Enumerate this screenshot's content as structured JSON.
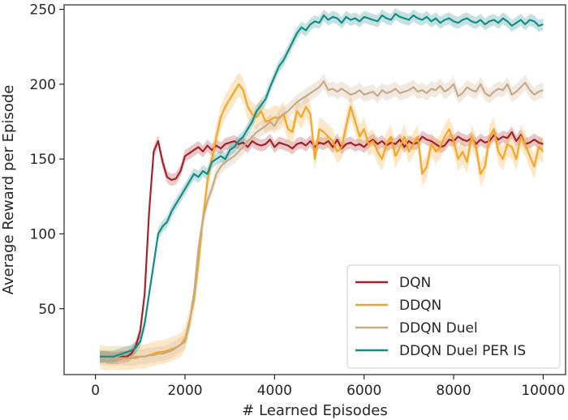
{
  "chart_data": {
    "type": "line",
    "xlabel": "# Learned Episodes",
    "ylabel": "Average Reward per Episode",
    "xlim": [
      -700,
      10500
    ],
    "ylim": [
      6,
      253
    ],
    "xticks": [
      0,
      2000,
      4000,
      6000,
      8000,
      10000
    ],
    "yticks": [
      50,
      100,
      150,
      200,
      250
    ],
    "grid": false,
    "legend_position": "lower-right",
    "x": [
      100,
      200,
      300,
      400,
      500,
      600,
      700,
      800,
      900,
      1000,
      1100,
      1200,
      1300,
      1400,
      1500,
      1600,
      1700,
      1800,
      1900,
      2000,
      2100,
      2200,
      2300,
      2400,
      2500,
      2600,
      2700,
      2800,
      2900,
      3000,
      3100,
      3200,
      3300,
      3400,
      3500,
      3600,
      3700,
      3800,
      3900,
      4000,
      4100,
      4200,
      4300,
      4400,
      4500,
      4600,
      4700,
      4800,
      4900,
      5000,
      5100,
      5200,
      5300,
      5400,
      5500,
      5600,
      5700,
      5800,
      5900,
      6000,
      6100,
      6200,
      6300,
      6400,
      6500,
      6600,
      6700,
      6800,
      6900,
      7000,
      7100,
      7200,
      7300,
      7400,
      7500,
      7600,
      7700,
      7800,
      7900,
      8000,
      8100,
      8200,
      8300,
      8400,
      8500,
      8600,
      8700,
      8800,
      8900,
      9000,
      9100,
      9200,
      9300,
      9400,
      9500,
      9600,
      9700,
      9800,
      9900,
      10000
    ],
    "series": [
      {
        "name": "DQN",
        "color": "#a52228",
        "values": [
          18,
          18,
          17,
          17,
          17,
          18,
          18,
          20,
          25,
          35,
          60,
          115,
          155,
          162,
          148,
          138,
          136,
          137,
          142,
          152,
          154,
          156,
          158,
          155,
          159,
          156,
          159,
          157,
          160,
          161,
          162,
          160,
          161,
          158,
          162,
          160,
          159,
          160,
          163,
          158,
          161,
          160,
          159,
          157,
          160,
          161,
          159,
          162,
          158,
          161,
          160,
          162,
          158,
          163,
          157,
          160,
          161,
          159,
          160,
          158,
          161,
          163,
          160,
          162,
          159,
          161,
          160,
          163,
          158,
          162,
          160,
          161,
          165,
          163,
          162,
          160,
          158,
          159,
          163,
          162,
          165,
          163,
          162,
          164,
          160,
          163,
          161,
          162,
          166,
          163,
          165,
          164,
          168,
          162,
          166,
          160,
          161,
          163,
          161,
          160
        ],
        "band": 4
      },
      {
        "name": "DDQN",
        "color": "#f5a524",
        "values": [
          18,
          17,
          17,
          17,
          17,
          17,
          17,
          17,
          18,
          18,
          18,
          19,
          20,
          21,
          21,
          22,
          23,
          24,
          26,
          30,
          42,
          55,
          80,
          110,
          135,
          150,
          165,
          178,
          185,
          190,
          195,
          200,
          196,
          185,
          180,
          178,
          182,
          175,
          176,
          178,
          177,
          180,
          170,
          168,
          182,
          178,
          185,
          180,
          150,
          170,
          168,
          165,
          162,
          155,
          158,
          172,
          185,
          175,
          165,
          170,
          160,
          162,
          155,
          150,
          160,
          165,
          152,
          158,
          165,
          155,
          160,
          165,
          140,
          145,
          160,
          155,
          158,
          165,
          170,
          162,
          150,
          155,
          148,
          165,
          158,
          140,
          145,
          165,
          170,
          155,
          150,
          160,
          158,
          150,
          165,
          160,
          152,
          145,
          158,
          155
        ],
        "band": 8
      },
      {
        "name": "DDQN Duel",
        "color": "#c8aa88",
        "values": [
          18,
          17,
          17,
          17,
          17,
          17,
          17,
          17,
          17,
          18,
          18,
          19,
          19,
          20,
          20,
          21,
          22,
          24,
          26,
          28,
          40,
          60,
          90,
          110,
          122,
          130,
          140,
          145,
          148,
          150,
          152,
          155,
          158,
          162,
          165,
          168,
          170,
          172,
          175,
          172,
          178,
          180,
          182,
          185,
          188,
          190,
          192,
          194,
          196,
          198,
          202,
          196,
          197,
          195,
          197,
          195,
          193,
          194,
          196,
          193,
          194,
          195,
          192,
          196,
          194,
          195,
          197,
          194,
          195,
          196,
          198,
          195,
          196,
          194,
          197,
          196,
          199,
          195,
          197,
          200,
          192,
          194,
          198,
          196,
          195,
          200,
          194,
          192,
          195,
          197,
          196,
          200,
          193,
          195,
          198,
          201,
          196,
          193,
          195,
          196
        ],
        "band": 5
      },
      {
        "name": "DDQN Duel PER IS",
        "color": "#168b88",
        "values": [
          18,
          18,
          18,
          18,
          19,
          20,
          21,
          22,
          24,
          28,
          40,
          60,
          80,
          100,
          105,
          108,
          115,
          120,
          125,
          130,
          135,
          140,
          138,
          142,
          140,
          148,
          150,
          152,
          150,
          156,
          158,
          162,
          165,
          170,
          175,
          182,
          186,
          190,
          198,
          205,
          212,
          216,
          222,
          228,
          234,
          238,
          236,
          240,
          242,
          241,
          246,
          243,
          245,
          244,
          241,
          245,
          243,
          244,
          242,
          245,
          244,
          243,
          242,
          246,
          244,
          243,
          247,
          245,
          244,
          243,
          246,
          244,
          243,
          245,
          242,
          244,
          241,
          243,
          244,
          242,
          241,
          243,
          244,
          242,
          241,
          243,
          240,
          242,
          243,
          241,
          244,
          242,
          239,
          241,
          243,
          240,
          243,
          242,
          239,
          240
        ],
        "band": 4
      }
    ]
  }
}
